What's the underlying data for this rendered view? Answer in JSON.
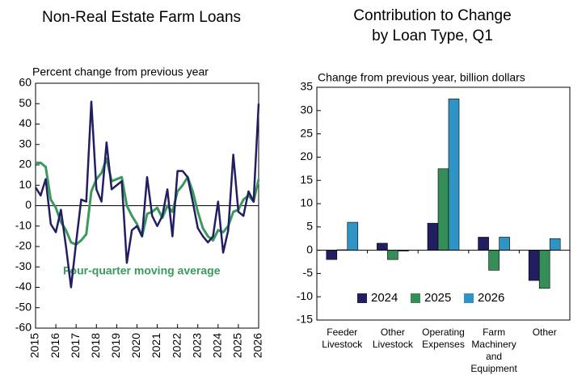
{
  "chart_data": [
    {
      "type": "line",
      "title": "Non-Real Estate Farm Loans",
      "y_label": "Percent change from previous year",
      "x": [
        2015,
        2015.25,
        2015.5,
        2015.75,
        2016,
        2016.25,
        2016.5,
        2016.75,
        2017,
        2017.25,
        2017.5,
        2017.75,
        2018,
        2018.25,
        2018.5,
        2018.75,
        2019,
        2019.25,
        2019.5,
        2019.75,
        2020,
        2020.25,
        2020.5,
        2020.75,
        2021,
        2021.25,
        2021.5,
        2021.75,
        2022,
        2022.25,
        2022.5,
        2022.75,
        2023,
        2023.25,
        2023.5,
        2023.75,
        2024,
        2024.25,
        2024.5,
        2024.75,
        2025,
        2025.25,
        2025.5,
        2025.75,
        2026
      ],
      "xlim": [
        2015,
        2026
      ],
      "xticks": [
        2015,
        2016,
        2017,
        2018,
        2019,
        2020,
        2021,
        2022,
        2023,
        2024,
        2025,
        2026
      ],
      "ylim": [
        -60,
        60
      ],
      "yticks": [
        -60,
        -50,
        -40,
        -30,
        -20,
        -10,
        0,
        10,
        20,
        30,
        40,
        50,
        60
      ],
      "series": [
        {
          "color": "#221e62",
          "values": [
            9,
            5,
            13,
            -9,
            -13,
            -2,
            -20,
            -40,
            -18,
            3,
            2,
            51,
            8,
            2,
            31,
            8,
            10,
            12,
            -28,
            -12,
            -10,
            -15,
            14,
            -5,
            -10,
            -5,
            8,
            -15,
            17,
            17,
            14,
            2,
            -11,
            -15,
            -18,
            -15,
            2,
            -23,
            -12,
            25,
            -3,
            -5,
            7,
            2,
            50
          ]
        },
        {
          "name": "Four-quarter moving average",
          "color": "#3a9a5c",
          "values": [
            21,
            21,
            19,
            3,
            -1,
            -8,
            -12,
            -18,
            -19,
            -17,
            -14,
            7,
            13,
            16,
            23,
            12,
            13,
            14,
            0,
            -5,
            -9,
            -15,
            -4,
            -3,
            -1,
            -6,
            0,
            -3,
            7,
            10,
            14,
            7,
            -3,
            -11,
            -15,
            -17,
            -12,
            -13,
            -10,
            -3,
            -2,
            3,
            5,
            2,
            13
          ]
        }
      ]
    },
    {
      "type": "bar",
      "title": [
        "Contribution to Change",
        "by Loan Type, Q1"
      ],
      "y_label": "Change from previous year, billion dollars",
      "categories": [
        [
          "Feeder",
          "Livestock"
        ],
        [
          "Other",
          "Livestock"
        ],
        [
          "Operating",
          "Expenses"
        ],
        [
          "Farm",
          "Machinery",
          "and",
          "Equipment"
        ],
        [
          "Other"
        ]
      ],
      "ylim": [
        -15,
        35
      ],
      "yticks": [
        -15,
        -10,
        -5,
        0,
        5,
        10,
        15,
        20,
        25,
        30,
        35
      ],
      "legend": "lower left",
      "series": [
        {
          "name": "2024",
          "color": "#221e62",
          "values": [
            -2,
            1.5,
            5.8,
            2.8,
            -6.5
          ]
        },
        {
          "name": "2025",
          "color": "#358e57",
          "values": [
            0.1,
            -2,
            17.5,
            -4.3,
            -8.2
          ]
        },
        {
          "name": "2026",
          "color": "#2f94c4",
          "values": [
            6,
            -0.2,
            32.5,
            2.8,
            2.5
          ]
        }
      ]
    }
  ]
}
